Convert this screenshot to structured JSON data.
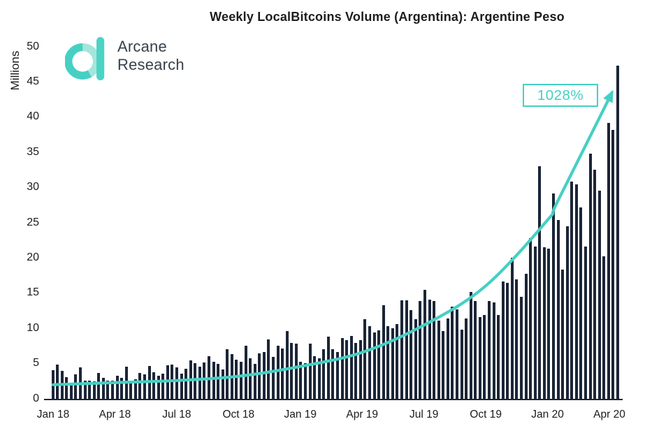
{
  "header": {
    "title": "Weekly LocalBitcoins Volume (Argentina): Argentine Peso",
    "logo": {
      "line1": "Arcane",
      "line2": "Research"
    }
  },
  "annotation": {
    "label": "1028%"
  },
  "colors": {
    "bar": "#1b2537",
    "accent_teal": "#45d0c3",
    "accent_teal_light": "#a5e5dc",
    "text_dark": "#1b1b1b",
    "logo_text": "#37414b"
  },
  "chart_data": {
    "type": "bar",
    "title": "Weekly LocalBitcoins Volume (Argentina): Argentine Peso",
    "xlabel": "",
    "ylabel": "Millions",
    "ylim": [
      0,
      50
    ],
    "yticks": [
      0,
      5,
      10,
      15,
      20,
      25,
      30,
      35,
      40,
      45,
      50
    ],
    "x_tick_labels": [
      "Jan 18",
      "Apr 18",
      "Jul 18",
      "Oct 18",
      "Jan 19",
      "Apr 19",
      "Jul 19",
      "Oct 19",
      "Jan 20",
      "Apr 20"
    ],
    "grid": false,
    "legend": "none",
    "series_name": "Weekly LocalBitcoins volume (millions)",
    "values": [
      4.1,
      4.9,
      4.0,
      3.1,
      2.1,
      3.5,
      4.5,
      2.6,
      2.6,
      2.5,
      3.7,
      3.0,
      2.6,
      2.6,
      3.3,
      3.0,
      4.6,
      2.6,
      2.8,
      3.7,
      3.5,
      4.7,
      3.8,
      3.3,
      3.6,
      4.8,
      4.9,
      4.5,
      3.6,
      4.3,
      5.5,
      5.1,
      4.6,
      5.2,
      6.1,
      5.3,
      5.0,
      4.2,
      7.0,
      6.3,
      5.6,
      5.3,
      7.5,
      5.8,
      5.0,
      6.4,
      6.6,
      8.4,
      6.0,
      7.5,
      7.1,
      9.6,
      7.9,
      7.8,
      5.3,
      5.1,
      7.8,
      6.1,
      5.8,
      7.0,
      8.8,
      7.0,
      6.6,
      8.6,
      8.3,
      8.9,
      7.9,
      8.3,
      11.3,
      10.3,
      9.4,
      9.7,
      13.3,
      10.3,
      10.0,
      10.6,
      14.0,
      14.0,
      12.6,
      11.3,
      13.9,
      15.5,
      14.1,
      13.9,
      11.1,
      9.6,
      11.4,
      13.1,
      12.7,
      9.8,
      11.4,
      15.2,
      13.9,
      11.6,
      11.9,
      13.9,
      13.7,
      11.9,
      16.7,
      16.5,
      20.0,
      17.0,
      14.5,
      17.8,
      22.8,
      21.6,
      33.0,
      21.5,
      21.3,
      29.2,
      25.4,
      18.4,
      24.5,
      30.9,
      30.5,
      27.2,
      21.6,
      34.8,
      32.5,
      29.6,
      20.2,
      39.2,
      38.2,
      47.3
    ],
    "trend_line": {
      "style": "smooth exponential with arrow head",
      "annotation": "1028%",
      "points_frac_value": [
        [
          0.005,
          2.0
        ],
        [
          0.113,
          2.3
        ],
        [
          0.222,
          2.6
        ],
        [
          0.33,
          3.2
        ],
        [
          0.439,
          4.6
        ],
        [
          0.547,
          6.6
        ],
        [
          0.656,
          10.5
        ],
        [
          0.763,
          16.0
        ],
        [
          0.871,
          25.3
        ],
        [
          0.89,
          28.1
        ],
        [
          0.985,
          43.5
        ]
      ]
    }
  }
}
